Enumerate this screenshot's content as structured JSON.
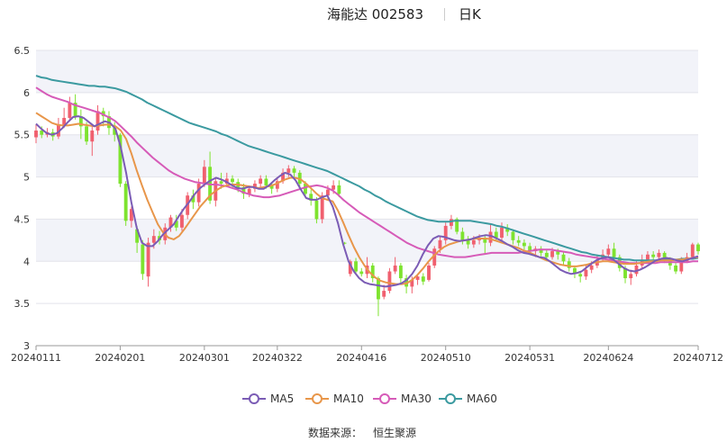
{
  "header": {
    "stock": "海能达 002583",
    "period": "日K"
  },
  "source": {
    "label": "数据来源：",
    "name": "恒生聚源"
  },
  "chart_data": {
    "type": "candlestick",
    "y_ticks": [
      "3",
      "3.5",
      "4",
      "4.5",
      "5",
      "5.5",
      "6",
      "6.5"
    ],
    "ylim": [
      3,
      6.5
    ],
    "x_ticks": [
      "20240111",
      "20240201",
      "20240301",
      "20240322",
      "20240416",
      "20240510",
      "20240531",
      "20240624",
      "20240712"
    ],
    "grid": true,
    "colors": {
      "up": "#f0606f",
      "down": "#7ee32f",
      "ma5": "#7b5cb5",
      "ma10": "#e8964a",
      "ma30": "#d65bb8",
      "ma60": "#3b9aa0",
      "band": "#f2f3f9"
    },
    "legend": [
      {
        "name": "MA5",
        "color": "#7b5cb5"
      },
      {
        "name": "MA10",
        "color": "#e8964a"
      },
      {
        "name": "MA30",
        "color": "#d65bb8"
      },
      {
        "name": "MA60",
        "color": "#3b9aa0"
      }
    ],
    "candles": [
      {
        "o": 5.47,
        "c": 5.55,
        "h": 5.62,
        "l": 5.4
      },
      {
        "o": 5.55,
        "c": 5.5,
        "h": 5.6,
        "l": 5.46
      },
      {
        "o": 5.5,
        "c": 5.53,
        "h": 5.58,
        "l": 5.47
      },
      {
        "o": 5.53,
        "c": 5.48,
        "h": 5.57,
        "l": 5.43
      },
      {
        "o": 5.48,
        "c": 5.62,
        "h": 5.7,
        "l": 5.45
      },
      {
        "o": 5.62,
        "c": 5.7,
        "h": 5.82,
        "l": 5.58
      },
      {
        "o": 5.7,
        "c": 5.88,
        "h": 5.95,
        "l": 5.66
      },
      {
        "o": 5.88,
        "c": 5.72,
        "h": 5.98,
        "l": 5.68
      },
      {
        "o": 5.72,
        "c": 5.6,
        "h": 5.8,
        "l": 5.45
      },
      {
        "o": 5.6,
        "c": 5.42,
        "h": 5.65,
        "l": 5.38
      },
      {
        "o": 5.42,
        "c": 5.55,
        "h": 5.62,
        "l": 5.25
      },
      {
        "o": 5.55,
        "c": 5.78,
        "h": 5.85,
        "l": 5.5
      },
      {
        "o": 5.78,
        "c": 5.72,
        "h": 5.82,
        "l": 5.6
      },
      {
        "o": 5.72,
        "c": 5.58,
        "h": 5.78,
        "l": 5.5
      },
      {
        "o": 5.58,
        "c": 5.5,
        "h": 5.65,
        "l": 5.42
      },
      {
        "o": 5.5,
        "c": 4.92,
        "h": 5.52,
        "l": 4.88
      },
      {
        "o": 4.92,
        "c": 4.48,
        "h": 4.95,
        "l": 4.42
      },
      {
        "o": 4.48,
        "c": 4.62,
        "h": 4.65,
        "l": 4.4
      },
      {
        "o": 4.38,
        "c": 4.22,
        "h": 4.42,
        "l": 4.1
      },
      {
        "o": 4.2,
        "c": 3.85,
        "h": 4.25,
        "l": 3.78
      },
      {
        "o": 3.82,
        "c": 4.22,
        "h": 4.28,
        "l": 3.7
      },
      {
        "o": 4.22,
        "c": 4.3,
        "h": 4.38,
        "l": 4.15
      },
      {
        "o": 4.3,
        "c": 4.25,
        "h": 4.36,
        "l": 4.2
      },
      {
        "o": 4.25,
        "c": 4.4,
        "h": 4.45,
        "l": 4.2
      },
      {
        "o": 4.4,
        "c": 4.52,
        "h": 4.55,
        "l": 4.35
      },
      {
        "o": 4.48,
        "c": 4.4,
        "h": 4.55,
        "l": 4.36
      },
      {
        "o": 4.4,
        "c": 4.55,
        "h": 4.62,
        "l": 4.36
      },
      {
        "o": 4.55,
        "c": 4.78,
        "h": 4.82,
        "l": 4.5
      },
      {
        "o": 4.78,
        "c": 4.7,
        "h": 4.85,
        "l": 4.62
      },
      {
        "o": 4.7,
        "c": 4.92,
        "h": 4.98,
        "l": 4.65
      },
      {
        "o": 4.92,
        "c": 5.12,
        "h": 5.2,
        "l": 4.88
      },
      {
        "o": 5.12,
        "c": 4.72,
        "h": 5.3,
        "l": 4.68
      },
      {
        "o": 4.72,
        "c": 4.95,
        "h": 5.0,
        "l": 4.65
      },
      {
        "o": 4.95,
        "c": 4.92,
        "h": 5.05,
        "l": 4.86
      },
      {
        "o": 4.92,
        "c": 4.98,
        "h": 5.05,
        "l": 4.88
      },
      {
        "o": 4.98,
        "c": 4.94,
        "h": 5.02,
        "l": 4.88
      },
      {
        "o": 4.94,
        "c": 4.88,
        "h": 4.98,
        "l": 4.82
      },
      {
        "o": 4.88,
        "c": 4.8,
        "h": 4.92,
        "l": 4.74
      },
      {
        "o": 4.8,
        "c": 4.86,
        "h": 4.9,
        "l": 4.76
      },
      {
        "o": 4.86,
        "c": 4.92,
        "h": 4.96,
        "l": 4.82
      },
      {
        "o": 4.92,
        "c": 4.98,
        "h": 5.02,
        "l": 4.88
      },
      {
        "o": 4.98,
        "c": 4.9,
        "h": 5.02,
        "l": 4.86
      },
      {
        "o": 4.9,
        "c": 4.86,
        "h": 4.94,
        "l": 4.8
      },
      {
        "o": 4.86,
        "c": 4.95,
        "h": 5.0,
        "l": 4.82
      },
      {
        "o": 4.95,
        "c": 5.05,
        "h": 5.1,
        "l": 4.92
      },
      {
        "o": 5.05,
        "c": 5.1,
        "h": 5.14,
        "l": 5.0
      },
      {
        "o": 5.1,
        "c": 5.05,
        "h": 5.13,
        "l": 5.0
      },
      {
        "o": 5.05,
        "c": 4.92,
        "h": 5.08,
        "l": 4.88
      },
      {
        "o": 4.92,
        "c": 4.8,
        "h": 4.95,
        "l": 4.75
      },
      {
        "o": 4.8,
        "c": 4.72,
        "h": 4.85,
        "l": 4.66
      },
      {
        "o": 4.72,
        "c": 4.5,
        "h": 4.76,
        "l": 4.45
      },
      {
        "o": 4.5,
        "c": 4.78,
        "h": 4.82,
        "l": 4.45
      },
      {
        "o": 4.78,
        "c": 4.85,
        "h": 4.9,
        "l": 4.74
      },
      {
        "o": 4.85,
        "c": 4.9,
        "h": 4.96,
        "l": 4.8
      },
      {
        "o": 4.9,
        "c": 4.8,
        "h": 4.96,
        "l": 4.76
      },
      {
        "o": 4.22,
        "c": 4.21,
        "h": 4.23,
        "l": 4.2
      },
      {
        "o": 3.85,
        "c": 4.0,
        "h": 4.02,
        "l": 3.82
      },
      {
        "o": 4.0,
        "c": 3.88,
        "h": 4.04,
        "l": 3.84
      },
      {
        "o": 3.88,
        "c": 3.85,
        "h": 3.92,
        "l": 3.82
      },
      {
        "o": 3.85,
        "c": 3.95,
        "h": 4.05,
        "l": 3.8
      },
      {
        "o": 3.95,
        "c": 3.8,
        "h": 3.98,
        "l": 3.75
      },
      {
        "o": 3.8,
        "c": 3.55,
        "h": 3.82,
        "l": 3.35
      },
      {
        "o": 3.58,
        "c": 3.65,
        "h": 3.72,
        "l": 3.55
      },
      {
        "o": 3.65,
        "c": 3.88,
        "h": 3.92,
        "l": 3.62
      },
      {
        "o": 3.88,
        "c": 3.95,
        "h": 4.05,
        "l": 3.85
      },
      {
        "o": 3.95,
        "c": 3.8,
        "h": 3.98,
        "l": 3.74
      },
      {
        "o": 3.8,
        "c": 3.7,
        "h": 3.84,
        "l": 3.62
      },
      {
        "o": 3.7,
        "c": 3.78,
        "h": 3.82,
        "l": 3.62
      },
      {
        "o": 3.78,
        "c": 3.82,
        "h": 3.85,
        "l": 3.72
      },
      {
        "o": 3.82,
        "c": 3.76,
        "h": 3.86,
        "l": 3.72
      },
      {
        "o": 3.78,
        "c": 3.95,
        "h": 3.98,
        "l": 3.76
      },
      {
        "o": 3.95,
        "c": 4.15,
        "h": 4.18,
        "l": 3.92
      },
      {
        "o": 4.15,
        "c": 4.25,
        "h": 4.3,
        "l": 4.1
      },
      {
        "o": 4.25,
        "c": 4.42,
        "h": 4.46,
        "l": 4.2
      },
      {
        "o": 4.42,
        "c": 4.5,
        "h": 4.55,
        "l": 4.38
      },
      {
        "o": 4.5,
        "c": 4.35,
        "h": 4.52,
        "l": 4.32
      },
      {
        "o": 4.35,
        "c": 4.25,
        "h": 4.4,
        "l": 4.2
      },
      {
        "o": 4.25,
        "c": 4.2,
        "h": 4.3,
        "l": 4.15
      },
      {
        "o": 4.2,
        "c": 4.25,
        "h": 4.3,
        "l": 4.16
      },
      {
        "o": 4.25,
        "c": 4.28,
        "h": 4.32,
        "l": 4.2
      },
      {
        "o": 4.28,
        "c": 4.22,
        "h": 4.32,
        "l": 4.08
      },
      {
        "o": 4.22,
        "c": 4.35,
        "h": 4.45,
        "l": 4.18
      },
      {
        "o": 4.35,
        "c": 4.28,
        "h": 4.4,
        "l": 4.24
      },
      {
        "o": 4.28,
        "c": 4.4,
        "h": 4.46,
        "l": 4.25
      },
      {
        "o": 4.4,
        "c": 4.35,
        "h": 4.44,
        "l": 4.3
      },
      {
        "o": 4.35,
        "c": 4.25,
        "h": 4.38,
        "l": 4.2
      },
      {
        "o": 4.25,
        "c": 4.22,
        "h": 4.3,
        "l": 4.18
      },
      {
        "o": 4.22,
        "c": 4.18,
        "h": 4.26,
        "l": 4.14
      },
      {
        "o": 4.18,
        "c": 4.12,
        "h": 4.22,
        "l": 4.08
      },
      {
        "o": 4.12,
        "c": 4.15,
        "h": 4.18,
        "l": 4.05
      },
      {
        "o": 4.15,
        "c": 4.1,
        "h": 4.18,
        "l": 4.06
      },
      {
        "o": 4.1,
        "c": 4.05,
        "h": 4.14,
        "l": 4.0
      },
      {
        "o": 4.05,
        "c": 4.12,
        "h": 4.16,
        "l": 4.02
      },
      {
        "o": 4.12,
        "c": 4.08,
        "h": 4.15,
        "l": 4.02
      },
      {
        "o": 4.08,
        "c": 4.0,
        "h": 4.12,
        "l": 3.96
      },
      {
        "o": 4.0,
        "c": 3.92,
        "h": 4.04,
        "l": 3.88
      },
      {
        "o": 3.92,
        "c": 3.85,
        "h": 3.95,
        "l": 3.8
      },
      {
        "o": 3.85,
        "c": 3.82,
        "h": 3.88,
        "l": 3.75
      },
      {
        "o": 3.82,
        "c": 3.9,
        "h": 3.95,
        "l": 3.78
      },
      {
        "o": 3.9,
        "c": 3.95,
        "h": 4.0,
        "l": 3.86
      },
      {
        "o": 3.95,
        "c": 4.02,
        "h": 4.08,
        "l": 3.92
      },
      {
        "o": 4.02,
        "c": 4.08,
        "h": 4.14,
        "l": 4.0
      },
      {
        "o": 4.08,
        "c": 4.15,
        "h": 4.2,
        "l": 4.05
      },
      {
        "o": 4.15,
        "c": 4.05,
        "h": 4.22,
        "l": 4.0
      },
      {
        "o": 4.05,
        "c": 3.92,
        "h": 4.08,
        "l": 3.88
      },
      {
        "o": 3.92,
        "c": 3.8,
        "h": 3.95,
        "l": 3.74
      },
      {
        "o": 3.8,
        "c": 3.85,
        "h": 3.9,
        "l": 3.72
      },
      {
        "o": 3.85,
        "c": 3.95,
        "h": 4.0,
        "l": 3.82
      },
      {
        "o": 3.95,
        "c": 4.02,
        "h": 4.08,
        "l": 3.92
      },
      {
        "o": 4.02,
        "c": 4.08,
        "h": 4.12,
        "l": 3.98
      },
      {
        "o": 4.08,
        "c": 4.05,
        "h": 4.12,
        "l": 4.0
      },
      {
        "o": 4.05,
        "c": 4.1,
        "h": 4.14,
        "l": 4.02
      },
      {
        "o": 4.1,
        "c": 4.02,
        "h": 4.12,
        "l": 3.98
      },
      {
        "o": 4.02,
        "c": 3.95,
        "h": 4.05,
        "l": 3.9
      },
      {
        "o": 3.95,
        "c": 3.88,
        "h": 3.98,
        "l": 3.85
      },
      {
        "o": 3.88,
        "c": 4.0,
        "h": 4.05,
        "l": 3.85
      },
      {
        "o": 4.0,
        "c": 4.05,
        "h": 4.1,
        "l": 3.98
      },
      {
        "o": 4.05,
        "c": 4.2,
        "h": 4.22,
        "l": 4.02
      },
      {
        "o": 4.2,
        "c": 4.12,
        "h": 4.22,
        "l": 4.08
      }
    ],
    "ma5": [
      5.63,
      5.57,
      5.52,
      5.5,
      5.52,
      5.58,
      5.65,
      5.71,
      5.72,
      5.7,
      5.65,
      5.6,
      5.63,
      5.66,
      5.64,
      5.57,
      5.35,
      5.05,
      4.7,
      4.4,
      4.22,
      4.18,
      4.18,
      4.24,
      4.32,
      4.38,
      4.44,
      4.54,
      4.63,
      4.71,
      4.8,
      4.87,
      4.92,
      4.96,
      4.99,
      4.97,
      4.94,
      4.9,
      4.87,
      4.86,
      4.88,
      4.88,
      4.86,
      4.86,
      4.9,
      4.96,
      5.01,
      5.05,
      5.03,
      4.96,
      4.85,
      4.75,
      4.73,
      4.73,
      4.76,
      4.78,
      4.65,
      4.45,
      4.2,
      4.0,
      3.88,
      3.8,
      3.75,
      3.73,
      3.72,
      3.71,
      3.7,
      3.71,
      3.72,
      3.74,
      3.78,
      3.85,
      3.95,
      4.08,
      4.19,
      4.27,
      4.3,
      4.29,
      4.27,
      4.25,
      4.24,
      4.25,
      4.26,
      4.28,
      4.3,
      4.31,
      4.3,
      4.27,
      4.24,
      4.2,
      4.17,
      4.13,
      4.1,
      4.09,
      4.07,
      4.05,
      4.04,
      4.0,
      3.95,
      3.9,
      3.87,
      3.85,
      3.86,
      3.88,
      3.93,
      3.98,
      4.02,
      4.04,
      4.05,
      4.02,
      3.97,
      3.92,
      3.89,
      3.88,
      3.9,
      3.93,
      3.97,
      4.01,
      4.03,
      4.04,
      4.03,
      4.01,
      4.0,
      4.02,
      4.04,
      4.06
    ],
    "ma10": [
      5.76,
      5.72,
      5.68,
      5.64,
      5.62,
      5.61,
      5.61,
      5.62,
      5.63,
      5.62,
      5.61,
      5.6,
      5.61,
      5.62,
      5.62,
      5.6,
      5.55,
      5.45,
      5.28,
      5.08,
      4.9,
      4.73,
      4.58,
      4.44,
      4.34,
      4.28,
      4.26,
      4.3,
      4.38,
      4.47,
      4.56,
      4.65,
      4.72,
      4.79,
      4.84,
      4.88,
      4.9,
      4.91,
      4.91,
      4.9,
      4.89,
      4.88,
      4.87,
      4.88,
      4.89,
      4.91,
      4.94,
      4.97,
      4.99,
      4.99,
      4.97,
      4.92,
      4.86,
      4.8,
      4.75,
      4.73,
      4.71,
      4.6,
      4.46,
      4.31,
      4.17,
      4.05,
      3.95,
      3.87,
      3.81,
      3.77,
      3.75,
      3.74,
      3.73,
      3.73,
      3.74,
      3.78,
      3.84,
      3.91,
      3.99,
      4.06,
      4.12,
      4.17,
      4.2,
      4.22,
      4.24,
      4.25,
      4.26,
      4.27,
      4.27,
      4.27,
      4.26,
      4.24,
      4.22,
      4.2,
      4.18,
      4.16,
      4.13,
      4.11,
      4.08,
      4.05,
      4.02,
      4.0,
      3.98,
      3.96,
      3.95,
      3.94,
      3.94,
      3.95,
      3.96,
      3.98,
      3.99,
      4.0,
      4.0,
      3.99,
      3.98,
      3.97,
      3.97,
      3.97,
      3.98,
      3.99,
      4.0,
      4.0,
      4.01,
      4.01,
      4.01,
      4.02,
      4.02,
      4.03,
      4.04,
      4.05
    ],
    "ma30": [
      6.06,
      6.02,
      5.98,
      5.95,
      5.93,
      5.91,
      5.89,
      5.86,
      5.84,
      5.82,
      5.8,
      5.78,
      5.76,
      5.73,
      5.7,
      5.66,
      5.6,
      5.54,
      5.48,
      5.41,
      5.35,
      5.29,
      5.23,
      5.18,
      5.13,
      5.08,
      5.04,
      5.01,
      4.98,
      4.96,
      4.94,
      4.93,
      4.92,
      4.91,
      4.91,
      4.9,
      4.89,
      4.87,
      4.85,
      4.82,
      4.8,
      4.78,
      4.77,
      4.76,
      4.76,
      4.77,
      4.78,
      4.8,
      4.82,
      4.84,
      4.86,
      4.88,
      4.89,
      4.9,
      4.89,
      4.87,
      4.84,
      4.79,
      4.73,
      4.68,
      4.63,
      4.58,
      4.54,
      4.5,
      4.46,
      4.42,
      4.38,
      4.34,
      4.3,
      4.26,
      4.22,
      4.19,
      4.16,
      4.14,
      4.12,
      4.1,
      4.08,
      4.07,
      4.06,
      4.05,
      4.05,
      4.05,
      4.06,
      4.07,
      4.08,
      4.09,
      4.1,
      4.1,
      4.1,
      4.1,
      4.1,
      4.1,
      4.11,
      4.12,
      4.13,
      4.14,
      4.14,
      4.14,
      4.13,
      4.12,
      4.11,
      4.1,
      4.08,
      4.07,
      4.06,
      4.05,
      4.04,
      4.03,
      4.02,
      4.01,
      4.0,
      3.99,
      3.98,
      3.98,
      3.98,
      3.98,
      3.98,
      3.98,
      3.99,
      3.99,
      3.99,
      3.99,
      3.99,
      3.99,
      4.0,
      4.0
    ],
    "ma60": [
      6.2,
      6.18,
      6.17,
      6.15,
      6.14,
      6.13,
      6.12,
      6.11,
      6.1,
      6.09,
      6.08,
      6.08,
      6.07,
      6.07,
      6.06,
      6.05,
      6.03,
      6.01,
      5.98,
      5.95,
      5.92,
      5.88,
      5.85,
      5.82,
      5.79,
      5.76,
      5.73,
      5.7,
      5.67,
      5.64,
      5.62,
      5.6,
      5.58,
      5.56,
      5.54,
      5.51,
      5.49,
      5.46,
      5.43,
      5.4,
      5.37,
      5.35,
      5.33,
      5.31,
      5.29,
      5.27,
      5.25,
      5.23,
      5.21,
      5.19,
      5.17,
      5.15,
      5.13,
      5.11,
      5.09,
      5.07,
      5.04,
      5.01,
      4.98,
      4.95,
      4.92,
      4.89,
      4.85,
      4.82,
      4.78,
      4.75,
      4.71,
      4.68,
      4.65,
      4.62,
      4.59,
      4.56,
      4.53,
      4.51,
      4.49,
      4.48,
      4.47,
      4.47,
      4.47,
      4.48,
      4.48,
      4.48,
      4.48,
      4.47,
      4.46,
      4.45,
      4.44,
      4.42,
      4.41,
      4.39,
      4.37,
      4.35,
      4.33,
      4.31,
      4.29,
      4.27,
      4.25,
      4.23,
      4.21,
      4.19,
      4.17,
      4.15,
      4.13,
      4.11,
      4.1,
      4.08,
      4.07,
      4.06,
      4.05,
      4.04,
      4.03,
      4.02,
      4.02,
      4.01,
      4.01,
      4.01,
      4.01,
      4.01,
      4.02,
      4.02,
      4.02,
      4.02,
      4.03,
      4.03,
      4.03,
      4.04
    ]
  }
}
